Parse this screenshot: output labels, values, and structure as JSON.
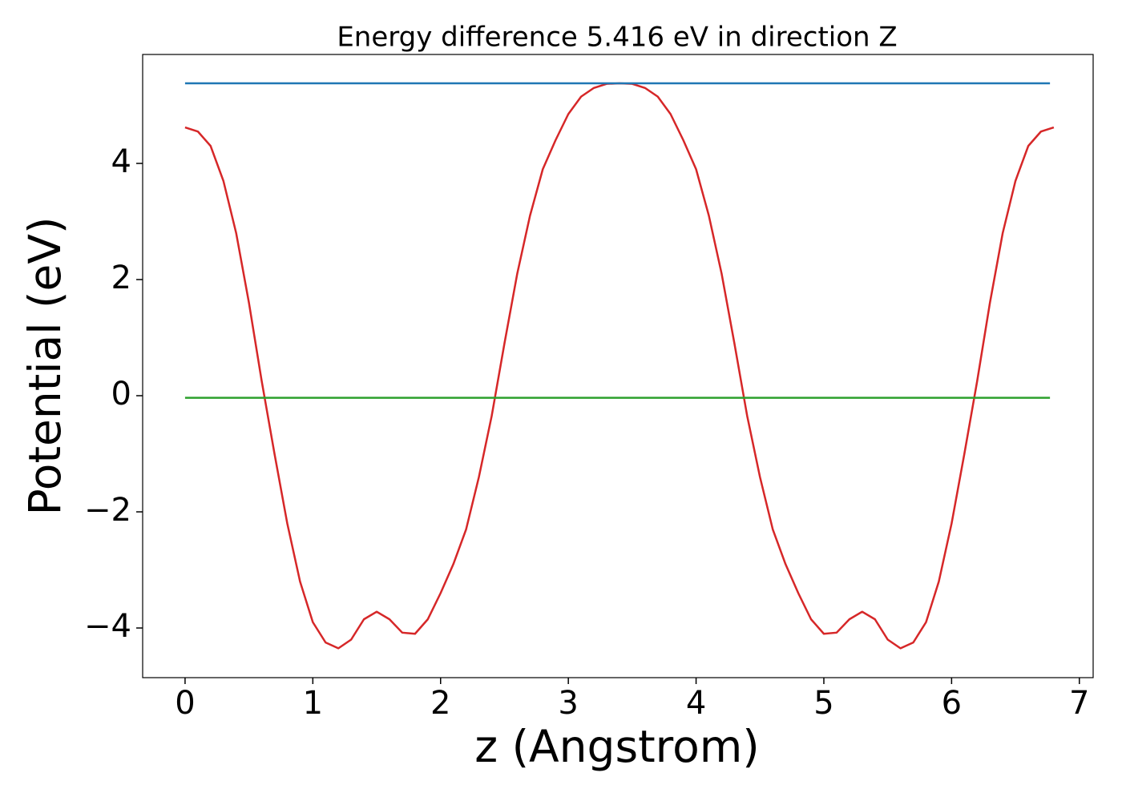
{
  "chart_data": {
    "type": "line",
    "title": "Energy difference 5.416 eV in direction Z",
    "xlabel": "z (Angstrom)",
    "ylabel": "Potential (eV)",
    "xlim": [
      -0.332,
      7.108
    ],
    "ylim": [
      -4.855,
      5.876
    ],
    "xticks": [
      0,
      1,
      2,
      3,
      4,
      5,
      6,
      7
    ],
    "yticks": [
      {
        "value": -4,
        "label": "−4"
      },
      {
        "value": -2,
        "label": "−2"
      },
      0,
      2,
      4
    ],
    "series": [
      {
        "color": "#d62728",
        "x": [
          0,
          0.1,
          0.2,
          0.3,
          0.4,
          0.5,
          0.6,
          0.7,
          0.8,
          0.9,
          1.0,
          1.1,
          1.2,
          1.3,
          1.4,
          1.5,
          1.6,
          1.7,
          1.8,
          1.9,
          2.0,
          2.1,
          2.2,
          2.3,
          2.4,
          2.5,
          2.6,
          2.7,
          2.8,
          2.9,
          3.0,
          3.1,
          3.2,
          3.3,
          3.4,
          3.5,
          3.6,
          3.7,
          3.8,
          3.9,
          4.0,
          4.1,
          4.2,
          4.3,
          4.4,
          4.5,
          4.6,
          4.7,
          4.8,
          4.9,
          5.0,
          5.1,
          5.2,
          5.3,
          5.4,
          5.5,
          5.6,
          5.7,
          5.8,
          5.9,
          6.0,
          6.1,
          6.2,
          6.3,
          6.4,
          6.5,
          6.6,
          6.7,
          6.8
        ],
        "values": [
          4.62,
          4.55,
          4.3,
          3.7,
          2.8,
          1.6,
          0.25,
          -1.0,
          -2.2,
          -3.2,
          -3.9,
          -4.25,
          -4.35,
          -4.2,
          -3.85,
          -3.72,
          -3.85,
          -4.08,
          -4.1,
          -3.85,
          -3.4,
          -2.9,
          -2.3,
          -1.4,
          -0.35,
          0.9,
          2.1,
          3.1,
          3.9,
          4.4,
          4.85,
          5.15,
          5.3,
          5.37,
          5.38,
          5.37,
          5.3,
          5.15,
          4.85,
          4.4,
          3.9,
          3.1,
          2.1,
          0.9,
          -0.35,
          -1.4,
          -2.3,
          -2.9,
          -3.4,
          -3.85,
          -4.1,
          -4.08,
          -3.85,
          -3.72,
          -3.85,
          -4.2,
          -4.35,
          -4.25,
          -3.9,
          -3.2,
          -2.2,
          -1.0,
          0.25,
          1.6,
          2.8,
          3.7,
          4.3,
          4.55,
          4.62
        ]
      },
      {
        "color": "#1f77b4",
        "x": [
          0,
          6.77
        ],
        "values": [
          5.38,
          5.38
        ]
      },
      {
        "color": "#2ca02c",
        "x": [
          0,
          6.77
        ],
        "values": [
          -0.036,
          -0.036
        ]
      }
    ]
  }
}
